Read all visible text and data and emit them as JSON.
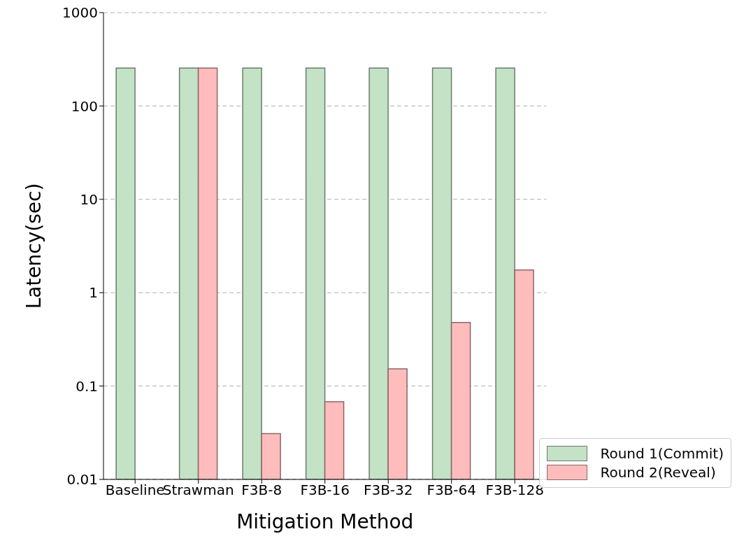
{
  "chart_data": {
    "type": "bar",
    "xlabel": "Mitigation Method",
    "ylabel": "Latency(sec)",
    "categories": [
      "Baseline",
      "Strawman",
      "F3B-8",
      "F3B-16",
      "F3B-32",
      "F3B-64",
      "F3B-128"
    ],
    "series": [
      {
        "name": "Round 1(Commit)",
        "color": "#c3e2c6",
        "values": [
          255,
          255,
          255,
          255,
          255,
          255,
          255
        ]
      },
      {
        "name": "Round 2(Reveal)",
        "color": "#ffbcbc",
        "values": [
          null,
          255,
          0.031,
          0.068,
          0.153,
          0.48,
          1.75
        ]
      }
    ],
    "log": true,
    "ylim": [
      0.01,
      1000
    ],
    "yticks": [
      0.01,
      0.1,
      1,
      10,
      100,
      1000
    ],
    "grid": "y",
    "legend": "bottom right"
  }
}
